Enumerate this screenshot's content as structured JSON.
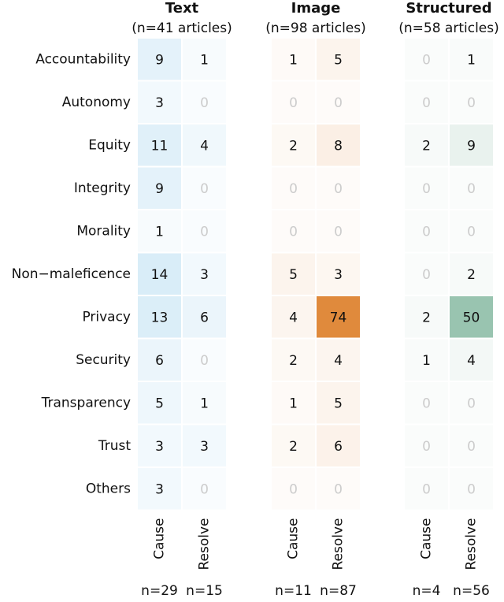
{
  "chart_data": {
    "type": "heatmap",
    "categories": [
      "Accountability",
      "Autonomy",
      "Equity",
      "Integrity",
      "Morality",
      "Non−maleficence",
      "Privacy",
      "Security",
      "Transparency",
      "Trust",
      "Others"
    ],
    "panels": [
      {
        "title": "Text",
        "subtitle": "(n=41 articles)",
        "color": "#4aa8dc",
        "columns": [
          {
            "name": "Cause",
            "total_label": "n=29",
            "values": [
              9,
              3,
              11,
              9,
              1,
              14,
              13,
              6,
              5,
              3,
              3
            ]
          },
          {
            "name": "Resolve",
            "total_label": "n=15",
            "values": [
              1,
              0,
              4,
              0,
              0,
              3,
              6,
              0,
              1,
              3,
              0
            ]
          }
        ]
      },
      {
        "title": "Image",
        "subtitle": "(n=98 articles)",
        "color": "#e08a3c",
        "columns": [
          {
            "name": "Cause",
            "total_label": "n=11",
            "values": [
              1,
              0,
              2,
              0,
              0,
              5,
              4,
              2,
              1,
              2,
              0
            ]
          },
          {
            "name": "Resolve",
            "total_label": "n=87",
            "values": [
              5,
              0,
              8,
              0,
              0,
              3,
              74,
              4,
              5,
              6,
              0
            ]
          }
        ]
      },
      {
        "title": "Structured",
        "subtitle": "(n=58 articles)",
        "color": "#6aa98c",
        "columns": [
          {
            "name": "Cause",
            "total_label": "n=4",
            "values": [
              0,
              0,
              2,
              0,
              0,
              0,
              2,
              1,
              0,
              0,
              0
            ]
          },
          {
            "name": "Resolve",
            "total_label": "n=56",
            "values": [
              1,
              0,
              9,
              0,
              0,
              2,
              50,
              4,
              0,
              0,
              0
            ]
          }
        ]
      }
    ]
  }
}
